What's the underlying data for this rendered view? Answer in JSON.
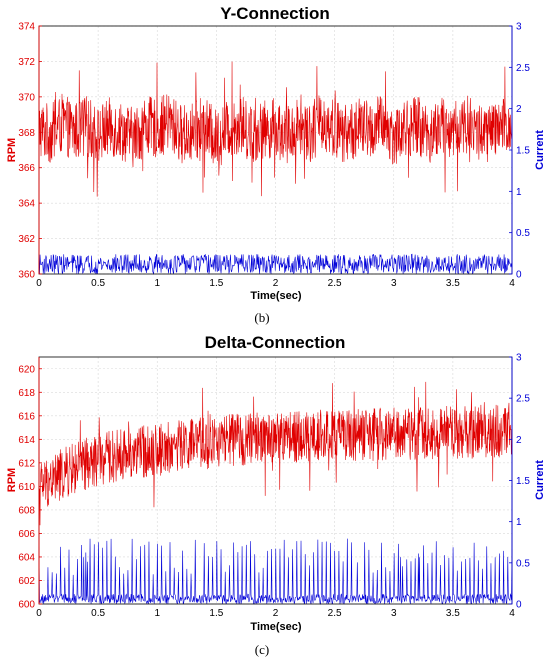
{
  "chart_data": [
    {
      "type": "line",
      "title": "Y-Connection",
      "panel_label": "(b)",
      "xlabel": "Time(sec)",
      "ylabel_left": "RPM",
      "ylabel_right": "Current",
      "xlim": [
        0,
        4
      ],
      "ylim_left": [
        360,
        374
      ],
      "ylim_right": [
        0,
        3
      ],
      "x_ticks": [
        "0",
        "0.5",
        "1",
        "1.5",
        "2",
        "2.5",
        "3",
        "3.5",
        "4"
      ],
      "y_left_ticks": [
        "360",
        "362",
        "364",
        "366",
        "368",
        "370",
        "372",
        "374"
      ],
      "y_right_ticks": [
        "0",
        "0.5",
        "1",
        "1.5",
        "2",
        "2.5",
        "3"
      ],
      "grid": true,
      "series": [
        {
          "name": "RPM",
          "axis": "left",
          "color": "#e00000",
          "x": [
            0,
            0.1,
            0.2,
            0.3,
            0.4,
            0.5,
            0.6,
            0.7,
            0.8,
            0.9,
            1.0,
            1.1,
            1.2,
            1.3,
            1.4,
            1.5,
            1.6,
            1.7,
            1.8,
            1.9,
            2.0,
            2.1,
            2.2,
            2.3,
            2.4,
            2.5,
            2.6,
            2.7,
            2.8,
            2.9,
            3.0,
            3.1,
            3.2,
            3.3,
            3.4,
            3.5,
            3.6,
            3.7,
            3.8,
            3.9,
            4.0
          ],
          "y": [
            368.2,
            367.9,
            368.5,
            368.0,
            368.4,
            367.8,
            368.3,
            368.1,
            367.7,
            368.4,
            368.2,
            368.6,
            367.9,
            368.0,
            368.3,
            367.6,
            368.2,
            368.5,
            367.9,
            368.1,
            368.3,
            367.8,
            368.4,
            368.0,
            368.6,
            368.2,
            367.9,
            368.3,
            368.1,
            368.5,
            367.8,
            368.2,
            368.4,
            367.9,
            368.3,
            368.0,
            368.5,
            368.1,
            367.9,
            368.2,
            368.3
          ],
          "min": 363.4,
          "max": 373.4
        },
        {
          "name": "Current",
          "axis": "right",
          "color": "#0000d8",
          "x": [
            0,
            0.5,
            1.0,
            1.5,
            2.0,
            2.5,
            3.0,
            3.5,
            4.0
          ],
          "y": [
            0.12,
            0.12,
            0.12,
            0.12,
            0.12,
            0.12,
            0.12,
            0.12,
            0.12
          ],
          "min": 0.0,
          "max": 0.3
        }
      ]
    },
    {
      "type": "line",
      "title": "Delta-Connection",
      "panel_label": "(c)",
      "xlabel": "Time(sec)",
      "ylabel_left": "RPM",
      "ylabel_right": "Current",
      "xlim": [
        0,
        4
      ],
      "ylim_left": [
        600,
        621
      ],
      "ylim_right": [
        0,
        3
      ],
      "x_ticks": [
        "0",
        "0.5",
        "1",
        "1.5",
        "2",
        "2.5",
        "3",
        "3.5",
        "4"
      ],
      "y_left_ticks": [
        "600",
        "602",
        "604",
        "606",
        "608",
        "610",
        "612",
        "614",
        "616",
        "618",
        "620"
      ],
      "y_right_ticks": [
        "0",
        "0.5",
        "1",
        "1.5",
        "2",
        "2.5",
        "3"
      ],
      "grid": true,
      "series": [
        {
          "name": "RPM",
          "axis": "left",
          "color": "#e00000",
          "x": [
            0,
            0.1,
            0.2,
            0.3,
            0.4,
            0.5,
            0.6,
            0.7,
            0.8,
            0.9,
            1.0,
            1.1,
            1.2,
            1.3,
            1.4,
            1.5,
            1.6,
            1.7,
            1.8,
            1.9,
            2.0,
            2.1,
            2.2,
            2.3,
            2.4,
            2.5,
            2.6,
            2.7,
            2.8,
            2.9,
            3.0,
            3.1,
            3.2,
            3.3,
            3.4,
            3.5,
            3.6,
            3.7,
            3.8,
            3.9,
            4.0
          ],
          "y": [
            610.0,
            610.5,
            611.0,
            611.5,
            611.8,
            612.2,
            612.5,
            612.7,
            612.9,
            613.0,
            613.1,
            613.3,
            613.5,
            613.6,
            613.7,
            613.8,
            613.9,
            614.0,
            614.0,
            614.1,
            614.1,
            614.2,
            614.2,
            614.2,
            614.3,
            614.3,
            614.4,
            614.4,
            614.4,
            614.4,
            614.5,
            614.5,
            614.5,
            614.5,
            614.6,
            614.6,
            614.6,
            614.6,
            614.7,
            614.7,
            614.8
          ],
          "min": 606.7,
          "max": 619.9
        },
        {
          "name": "Current",
          "axis": "right",
          "color": "#0000d8",
          "x": [
            0,
            0.5,
            1.0,
            1.5,
            2.0,
            2.5,
            3.0,
            3.5,
            4.0
          ],
          "y": [
            0.25,
            0.25,
            0.25,
            0.25,
            0.25,
            0.25,
            0.25,
            0.25,
            0.25
          ],
          "min": 0.0,
          "max": 1.0
        }
      ]
    }
  ]
}
